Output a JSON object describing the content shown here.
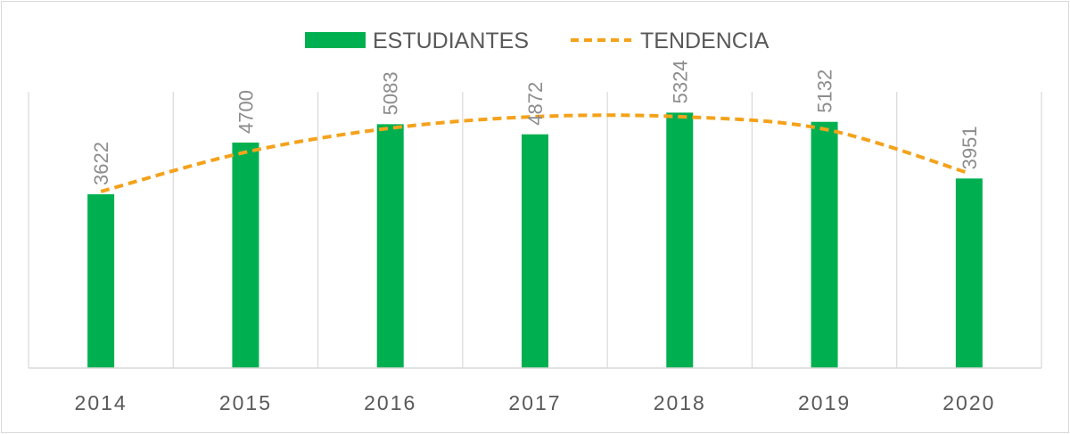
{
  "chart_data": {
    "type": "bar",
    "title": "",
    "xlabel": "",
    "ylabel": "",
    "categories": [
      "2014",
      "2015",
      "2016",
      "2017",
      "2018",
      "2019",
      "2020"
    ],
    "series": [
      {
        "name": "ESTUDIANTES",
        "type": "bar",
        "color": "#00b050",
        "values": [
          3622,
          4700,
          5083,
          4872,
          5324,
          5132,
          3951
        ]
      },
      {
        "name": "TENDENCIA",
        "type": "line",
        "style": "dashed",
        "color": "#f4a21b",
        "values": [
          3680,
          4500,
          5000,
          5240,
          5240,
          4980,
          4060
        ]
      }
    ],
    "ylim": [
      0,
      6000
    ],
    "grid": "vertical",
    "legend": "top-center",
    "data_labels": true
  }
}
